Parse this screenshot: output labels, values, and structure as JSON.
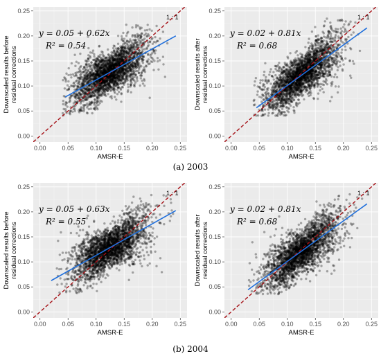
{
  "captions": [
    "(a) 2003",
    "(b) 2004"
  ],
  "chart_data": [
    {
      "type": "scatter",
      "panel_label": "(a) 2003",
      "xlabel": "AMSR-E",
      "ylabel_line1": "Downscaled results before",
      "ylabel_line2": "residual corrections",
      "equation": "y = 0.05 + 0.62x",
      "r2": "R² = 0.54",
      "one_to_one_label": "1 : 1",
      "x_ticks": [
        "0.00",
        "0.05",
        "0.10",
        "0.15",
        "0.20",
        "0.25"
      ],
      "y_ticks": [
        "0.00",
        "0.05",
        "0.10",
        "0.15",
        "0.20",
        "0.25"
      ],
      "xlim": [
        -0.012,
        0.262
      ],
      "ylim": [
        -0.012,
        0.258
      ],
      "grid": true,
      "fit": {
        "intercept": 0.05,
        "slope": 0.62,
        "x_range": [
          0.045,
          0.242
        ]
      },
      "one_to_one": {
        "x_range": [
          -0.012,
          0.258
        ]
      },
      "cloud": {
        "x_min": 0.04,
        "x_max": 0.245,
        "y_min": 0.04,
        "y_max": 0.225
      }
    },
    {
      "type": "scatter",
      "panel_label": "(a) 2003",
      "xlabel": "AMSR-E",
      "ylabel_line1": "Downscaled results after",
      "ylabel_line2": "residual corrections",
      "equation": "y = 0.02 + 0.81x",
      "r2": "R² = 0.68",
      "one_to_one_label": "1 : 1",
      "x_ticks": [
        "0.00",
        "0.05",
        "0.10",
        "0.15",
        "0.20",
        "0.25"
      ],
      "y_ticks": [
        "0.00",
        "0.05",
        "0.10",
        "0.15",
        "0.20",
        "0.25"
      ],
      "xlim": [
        -0.012,
        0.262
      ],
      "ylim": [
        -0.012,
        0.258
      ],
      "grid": true,
      "fit": {
        "intercept": 0.02,
        "slope": 0.81,
        "x_range": [
          0.045,
          0.242
        ]
      },
      "one_to_one": {
        "x_range": [
          -0.012,
          0.258
        ]
      },
      "cloud": {
        "x_min": 0.04,
        "x_max": 0.245,
        "y_min": 0.04,
        "y_max": 0.235
      }
    },
    {
      "type": "scatter",
      "panel_label": "(b) 2004",
      "xlabel": "AMSR-E",
      "ylabel_line1": "Downscaled results before",
      "ylabel_line2": "residual corrections",
      "equation": "y = 0.05 + 0.63x",
      "r2": "R² = 0.55",
      "one_to_one_label": "1 : 1",
      "x_ticks": [
        "0.00",
        "0.05",
        "0.10",
        "0.15",
        "0.20",
        "0.25"
      ],
      "y_ticks": [
        "0.00",
        "0.05",
        "0.10",
        "0.15",
        "0.20",
        "0.25"
      ],
      "xlim": [
        -0.012,
        0.262
      ],
      "ylim": [
        -0.012,
        0.258
      ],
      "grid": true,
      "fit": {
        "intercept": 0.05,
        "slope": 0.63,
        "x_range": [
          0.02,
          0.242
        ]
      },
      "one_to_one": {
        "x_range": [
          -0.012,
          0.258
        ]
      },
      "cloud": {
        "x_min": 0.03,
        "x_max": 0.245,
        "y_min": 0.035,
        "y_max": 0.235
      }
    },
    {
      "type": "scatter",
      "panel_label": "(b) 2004",
      "xlabel": "AMSR-E",
      "ylabel_line1": "Downscaled results after",
      "ylabel_line2": "residual corrections",
      "equation": "y = 0.02 + 0.81x",
      "r2": "R² = 0.68",
      "one_to_one_label": "1 : 1",
      "x_ticks": [
        "0.00",
        "0.05",
        "0.10",
        "0.15",
        "0.20",
        "0.25"
      ],
      "y_ticks": [
        "0.00",
        "0.05",
        "0.10",
        "0.15",
        "0.20",
        "0.25"
      ],
      "xlim": [
        -0.012,
        0.262
      ],
      "ylim": [
        -0.012,
        0.258
      ],
      "grid": true,
      "fit": {
        "intercept": 0.02,
        "slope": 0.81,
        "x_range": [
          0.03,
          0.242
        ]
      },
      "one_to_one": {
        "x_range": [
          -0.012,
          0.258
        ]
      },
      "cloud": {
        "x_min": 0.03,
        "x_max": 0.245,
        "y_min": 0.035,
        "y_max": 0.235
      }
    }
  ],
  "colors": {
    "panel_bg": "#ebebeb",
    "grid_major": "#ffffff",
    "points": "#000000",
    "fit_line": "#1f6fdc",
    "one_to_one_line": "#a50f15"
  }
}
